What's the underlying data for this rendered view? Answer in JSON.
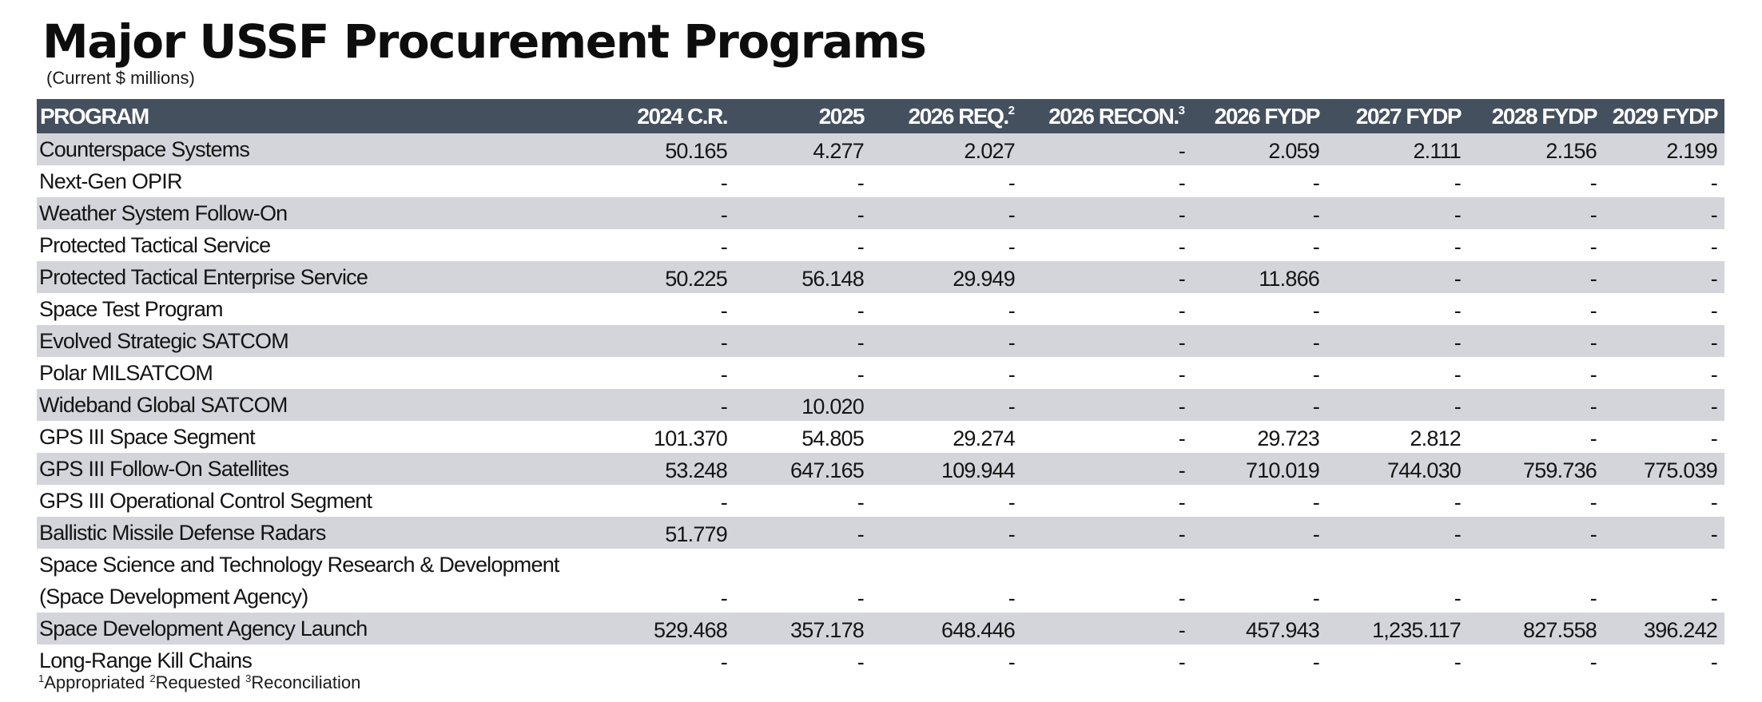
{
  "title": "Major USSF Procurement Programs",
  "subtitle": "(Current $ millions)",
  "colors": {
    "header_background": "#45505f",
    "header_text": "#ffffff",
    "stripe": "#d4d5da",
    "background": "#ffffff"
  },
  "chart_data": {
    "type": "table",
    "title": "Major USSF Procurement Programs",
    "subtitle": "(Current $ millions)",
    "columns": [
      {
        "label": "PROGRAM",
        "sup": ""
      },
      {
        "label": "2024 C.R.",
        "sup": ""
      },
      {
        "label": "2025",
        "sup": ""
      },
      {
        "label": "2026 REQ.",
        "sup": "2"
      },
      {
        "label": "2026 RECON.",
        "sup": "3"
      },
      {
        "label": "2026 FYDP",
        "sup": ""
      },
      {
        "label": "2027 FYDP",
        "sup": ""
      },
      {
        "label": "2028 FYDP",
        "sup": ""
      },
      {
        "label": "2029 FYDP",
        "sup": ""
      }
    ],
    "rows": [
      {
        "program": "Counterspace Systems",
        "values": [
          "50.165",
          "4.277",
          "2.027",
          "-",
          "2.059",
          "2.111",
          "2.156",
          "2.199"
        ]
      },
      {
        "program": "Next-Gen OPIR",
        "values": [
          "-",
          "-",
          "-",
          "-",
          "-",
          "-",
          "-",
          "-"
        ]
      },
      {
        "program": "Weather System Follow-On",
        "values": [
          "-",
          "-",
          "-",
          "-",
          "-",
          "-",
          "-",
          "-"
        ]
      },
      {
        "program": "Protected Tactical Service",
        "values": [
          "-",
          "-",
          "-",
          "-",
          "-",
          "-",
          "-",
          "-"
        ]
      },
      {
        "program": "Protected Tactical Enterprise Service",
        "values": [
          "50.225",
          "56.148",
          "29.949",
          "-",
          "11.866",
          "-",
          "-",
          "-"
        ]
      },
      {
        "program": "Space Test Program",
        "values": [
          "-",
          "-",
          "-",
          "-",
          "-",
          "-",
          "-",
          "-"
        ]
      },
      {
        "program": "Evolved Strategic SATCOM",
        "values": [
          "-",
          "-",
          "-",
          "-",
          "-",
          "-",
          "-",
          "-"
        ]
      },
      {
        "program": "Polar MILSATCOM",
        "values": [
          "-",
          "-",
          "-",
          "-",
          "-",
          "-",
          "-",
          "-"
        ]
      },
      {
        "program": "Wideband Global SATCOM",
        "values": [
          "-",
          "10.020",
          "-",
          "-",
          "-",
          "-",
          "-",
          "-"
        ]
      },
      {
        "program": "GPS III Space Segment",
        "values": [
          "101.370",
          "54.805",
          "29.274",
          "-",
          "29.723",
          "2.812",
          "-",
          "-"
        ]
      },
      {
        "program": "GPS III Follow-On Satellites",
        "values": [
          "53.248",
          "647.165",
          "109.944",
          "-",
          "710.019",
          "744.030",
          "759.736",
          "775.039"
        ]
      },
      {
        "program": "GPS III Operational Control Segment",
        "values": [
          "-",
          "-",
          "-",
          "-",
          "-",
          "-",
          "-",
          "-"
        ]
      },
      {
        "program": "Ballistic Missile Defense Radars",
        "values": [
          "51.779",
          "-",
          "-",
          "-",
          "-",
          "-",
          "-",
          "-"
        ]
      },
      {
        "program": "Space Science and Technology Research & Development (Space Development Agency)",
        "values": [
          "-",
          "-",
          "-",
          "-",
          "-",
          "-",
          "-",
          "-"
        ]
      },
      {
        "program": "Space Development Agency Launch",
        "values": [
          "529.468",
          "357.178",
          "648.446",
          "-",
          "457.943",
          "1,235.117",
          "827.558",
          "396.242"
        ]
      },
      {
        "program": "Long-Range Kill Chains",
        "values": [
          "-",
          "-",
          "-",
          "-",
          "-",
          "-",
          "-",
          "-"
        ]
      }
    ]
  },
  "footnotes": [
    {
      "sup": "1",
      "text": "Appropriated"
    },
    {
      "sup": "2",
      "text": "Requested"
    },
    {
      "sup": "3",
      "text": "Reconciliation"
    }
  ]
}
